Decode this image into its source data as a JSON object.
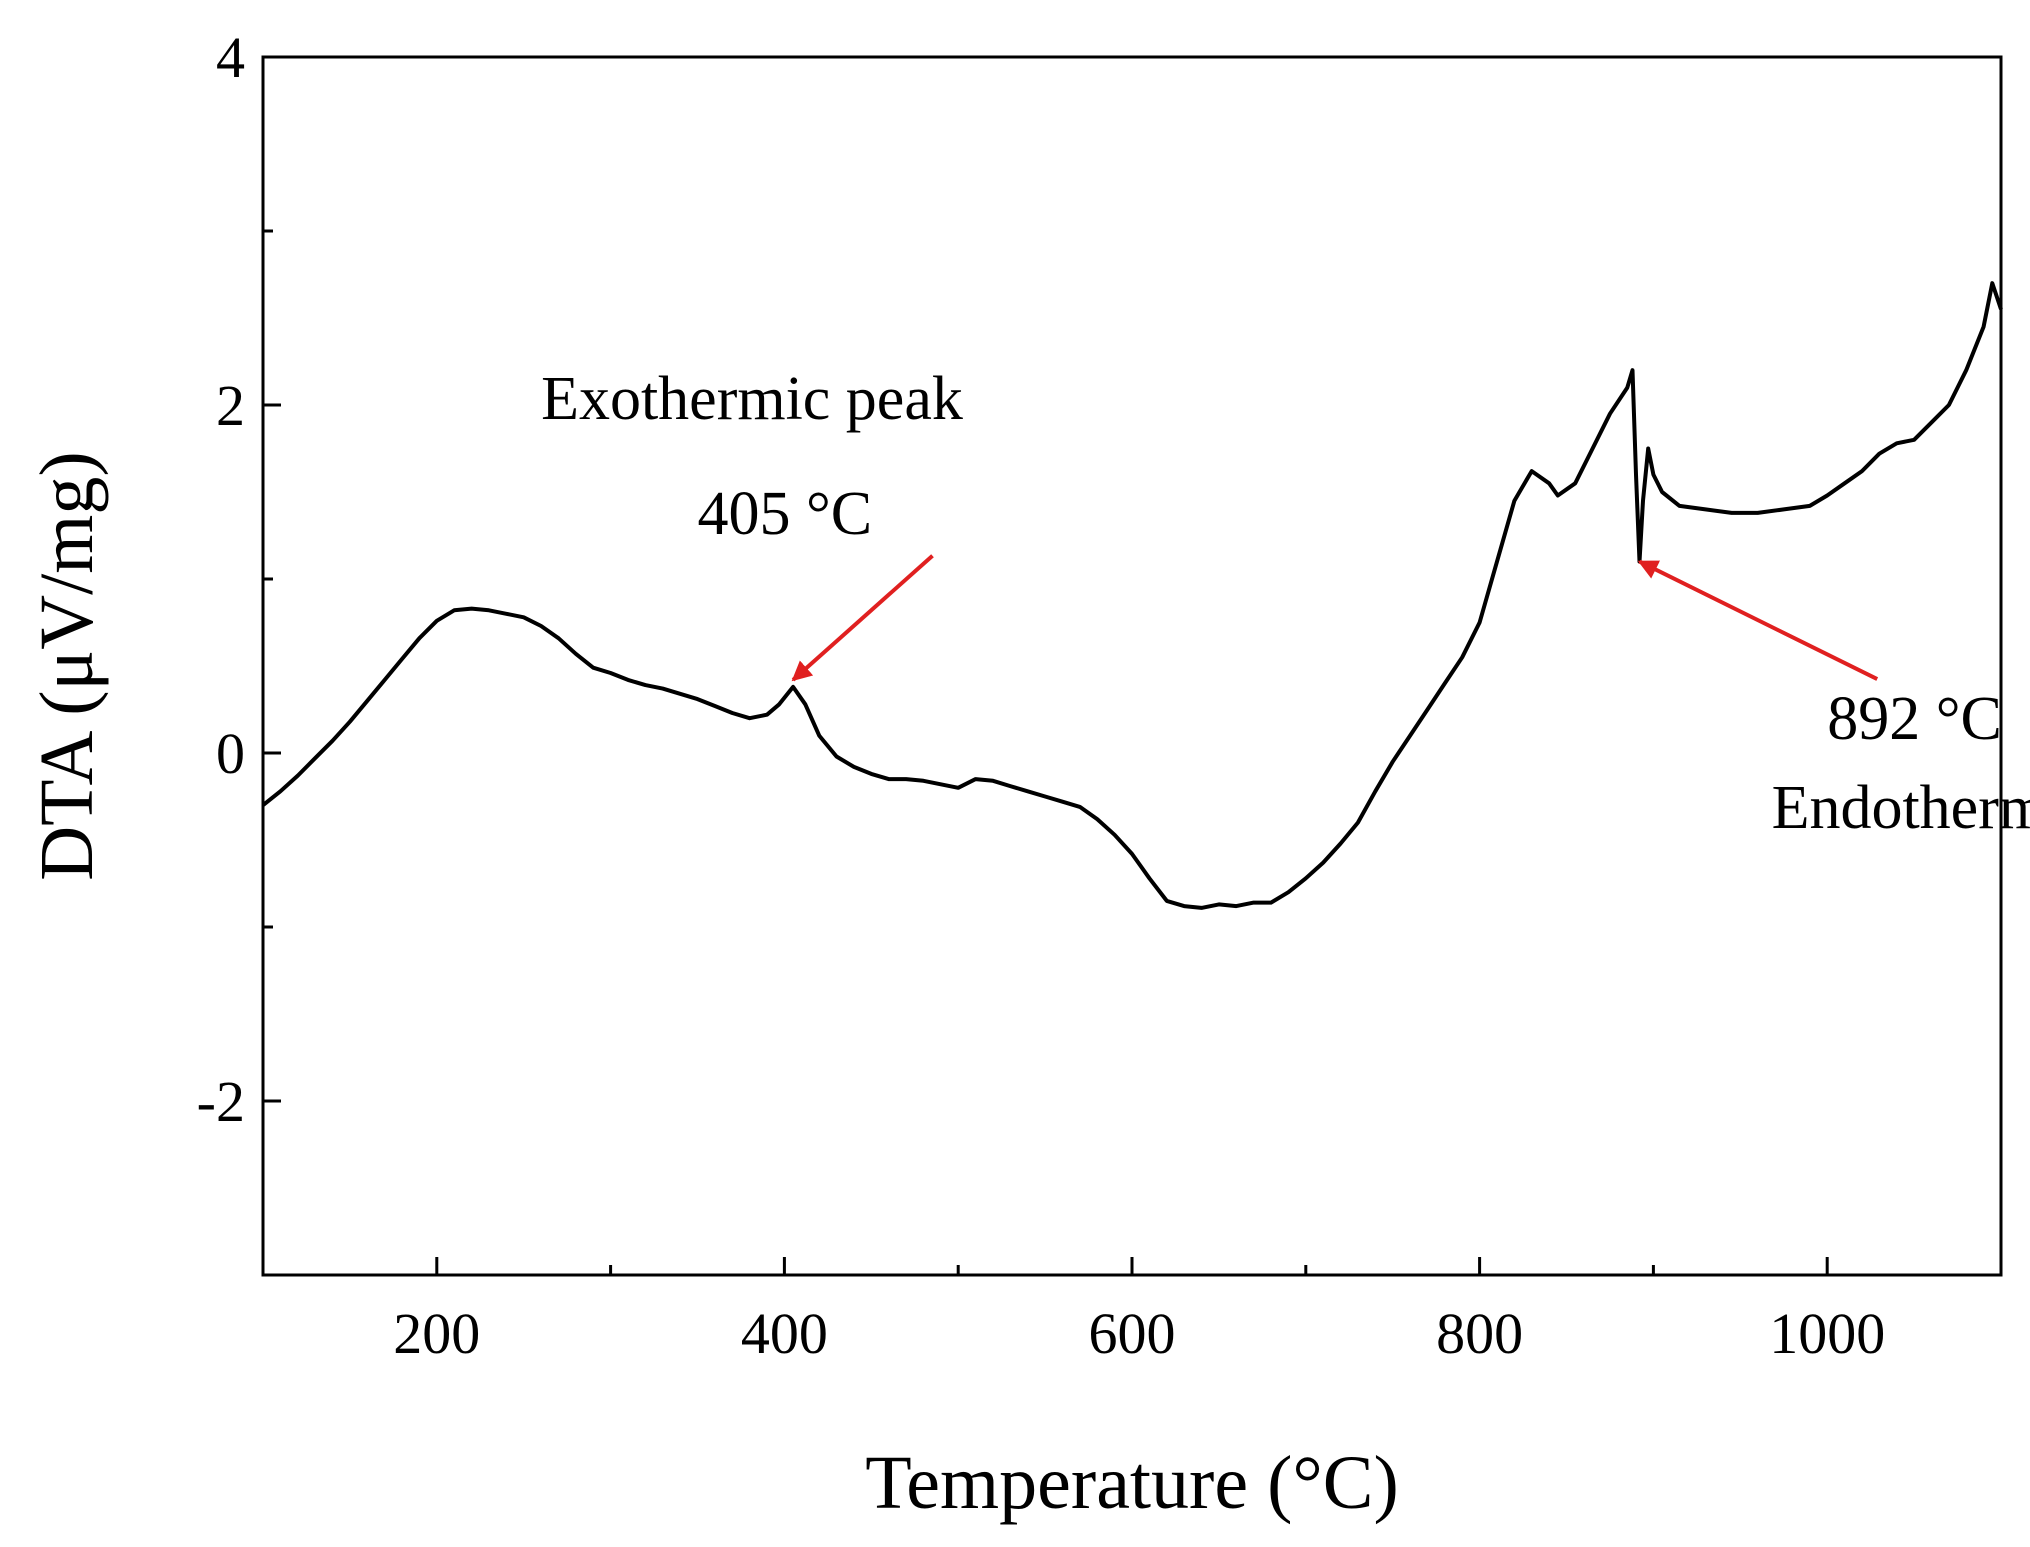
{
  "chart_data": {
    "type": "line",
    "title": "",
    "xlabel": "Temperature (°C)",
    "ylabel": "DTA (μV/mg)",
    "xlim": [
      100,
      1100
    ],
    "ylim": [
      -3,
      4
    ],
    "grid": false,
    "legend": "none",
    "x_ticks": [
      200,
      400,
      600,
      800,
      1000
    ],
    "x_tick_labels": [
      "200",
      "400",
      "600",
      "800",
      "1000"
    ],
    "x_minor_ticks": [
      300,
      500,
      700,
      900
    ],
    "y_ticks": [
      -2,
      0,
      2,
      4
    ],
    "y_tick_labels": [
      "-2",
      "0",
      "2",
      "4"
    ],
    "y_minor_ticks": [
      -1,
      1,
      3
    ],
    "series": [
      {
        "name": "DTA",
        "color": "#000000",
        "points": [
          [
            100,
            -0.3
          ],
          [
            110,
            -0.22
          ],
          [
            120,
            -0.13
          ],
          [
            130,
            -0.03
          ],
          [
            140,
            0.07
          ],
          [
            150,
            0.18
          ],
          [
            160,
            0.3
          ],
          [
            170,
            0.42
          ],
          [
            180,
            0.54
          ],
          [
            190,
            0.66
          ],
          [
            200,
            0.76
          ],
          [
            210,
            0.82
          ],
          [
            220,
            0.83
          ],
          [
            230,
            0.82
          ],
          [
            240,
            0.8
          ],
          [
            250,
            0.78
          ],
          [
            260,
            0.73
          ],
          [
            270,
            0.66
          ],
          [
            280,
            0.57
          ],
          [
            290,
            0.49
          ],
          [
            300,
            0.46
          ],
          [
            310,
            0.42
          ],
          [
            320,
            0.39
          ],
          [
            330,
            0.37
          ],
          [
            340,
            0.34
          ],
          [
            350,
            0.31
          ],
          [
            360,
            0.27
          ],
          [
            370,
            0.23
          ],
          [
            380,
            0.2
          ],
          [
            390,
            0.22
          ],
          [
            397,
            0.28
          ],
          [
            405,
            0.38
          ],
          [
            412,
            0.28
          ],
          [
            420,
            0.1
          ],
          [
            430,
            -0.02
          ],
          [
            440,
            -0.08
          ],
          [
            450,
            -0.12
          ],
          [
            460,
            -0.15
          ],
          [
            470,
            -0.15
          ],
          [
            480,
            -0.16
          ],
          [
            490,
            -0.18
          ],
          [
            500,
            -0.2
          ],
          [
            510,
            -0.15
          ],
          [
            520,
            -0.16
          ],
          [
            530,
            -0.19
          ],
          [
            540,
            -0.22
          ],
          [
            550,
            -0.25
          ],
          [
            560,
            -0.28
          ],
          [
            570,
            -0.31
          ],
          [
            580,
            -0.38
          ],
          [
            590,
            -0.47
          ],
          [
            600,
            -0.58
          ],
          [
            610,
            -0.72
          ],
          [
            620,
            -0.85
          ],
          [
            630,
            -0.88
          ],
          [
            640,
            -0.89
          ],
          [
            650,
            -0.87
          ],
          [
            660,
            -0.88
          ],
          [
            670,
            -0.86
          ],
          [
            680,
            -0.86
          ],
          [
            690,
            -0.8
          ],
          [
            700,
            -0.72
          ],
          [
            710,
            -0.63
          ],
          [
            720,
            -0.52
          ],
          [
            730,
            -0.4
          ],
          [
            740,
            -0.22
          ],
          [
            750,
            -0.05
          ],
          [
            760,
            0.1
          ],
          [
            770,
            0.25
          ],
          [
            780,
            0.4
          ],
          [
            790,
            0.55
          ],
          [
            800,
            0.75
          ],
          [
            810,
            1.1
          ],
          [
            820,
            1.45
          ],
          [
            830,
            1.62
          ],
          [
            840,
            1.55
          ],
          [
            845,
            1.48
          ],
          [
            855,
            1.55
          ],
          [
            865,
            1.75
          ],
          [
            875,
            1.95
          ],
          [
            885,
            2.1
          ],
          [
            888,
            2.2
          ],
          [
            890,
            1.6
          ],
          [
            892,
            1.1
          ],
          [
            894,
            1.45
          ],
          [
            897,
            1.75
          ],
          [
            900,
            1.6
          ],
          [
            905,
            1.5
          ],
          [
            915,
            1.42
          ],
          [
            930,
            1.4
          ],
          [
            945,
            1.38
          ],
          [
            960,
            1.38
          ],
          [
            975,
            1.4
          ],
          [
            990,
            1.42
          ],
          [
            1000,
            1.48
          ],
          [
            1010,
            1.55
          ],
          [
            1020,
            1.62
          ],
          [
            1030,
            1.72
          ],
          [
            1040,
            1.78
          ],
          [
            1050,
            1.8
          ],
          [
            1060,
            1.9
          ],
          [
            1070,
            2.0
          ],
          [
            1080,
            2.2
          ],
          [
            1090,
            2.45
          ],
          [
            1095,
            2.7
          ],
          [
            1100,
            2.55
          ]
        ]
      }
    ],
    "annotations": [
      {
        "label": "Exothermic peak",
        "x": 260,
        "y": 1.92
      },
      {
        "label": "405 °C",
        "x": 350,
        "y": 1.26,
        "arrow_to": [
          405,
          0.42
        ],
        "arrow_color": "#e02020"
      },
      {
        "label": "892 °C",
        "x": 1000,
        "y": 0.08,
        "arrow_to": [
          892,
          1.1
        ],
        "arrow_color": "#e02020"
      },
      {
        "label": "Endothermic peak",
        "x": 968,
        "y": -0.43
      }
    ]
  }
}
